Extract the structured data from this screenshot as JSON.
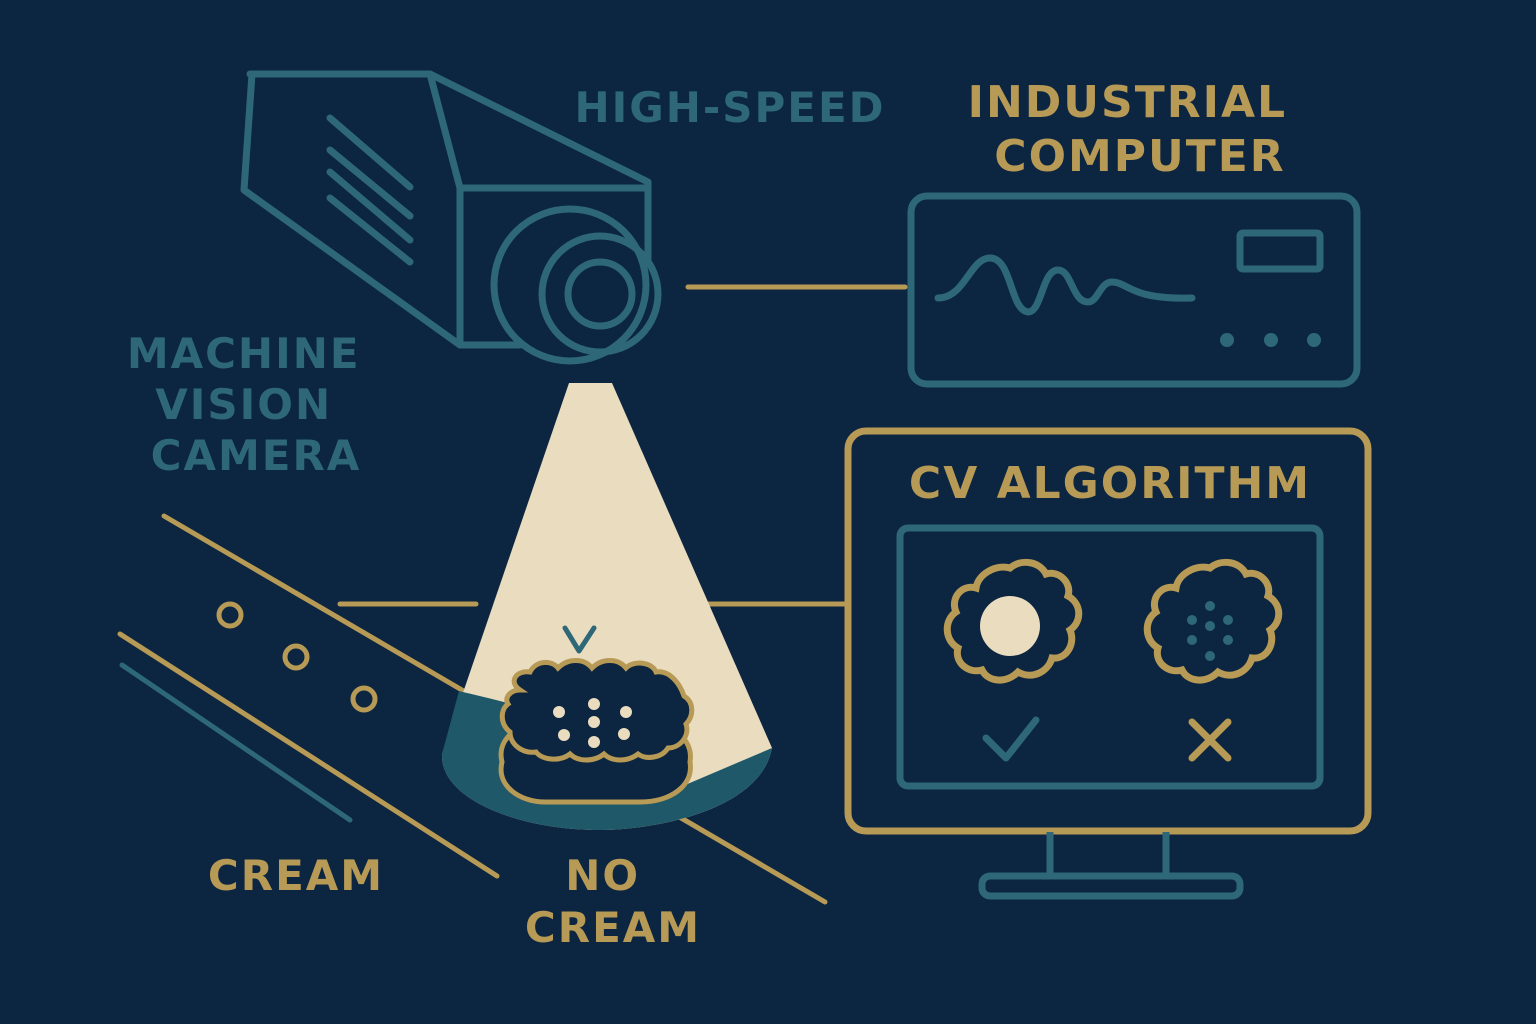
{
  "colors": {
    "background": "#0c2540",
    "teal": "#2e6878",
    "gold": "#b79a55",
    "beam": "#e9dcbf",
    "shadow": "#1f5868"
  },
  "labels": {
    "high_speed": "HIGH-SPEED",
    "industrial_computer": [
      "INDUSTRIAL",
      "COMPUTER"
    ],
    "machine_vision_camera": [
      "MACHINE",
      "VISION",
      "CAMERA"
    ],
    "cv_algorithm": "CV ALGORITHM",
    "cream": "CREAM",
    "no_cream": [
      "NO",
      "CREAM"
    ],
    "beam_mark": "V"
  },
  "results": {
    "pass_icon": "check-icon",
    "fail_icon": "cross-icon"
  }
}
